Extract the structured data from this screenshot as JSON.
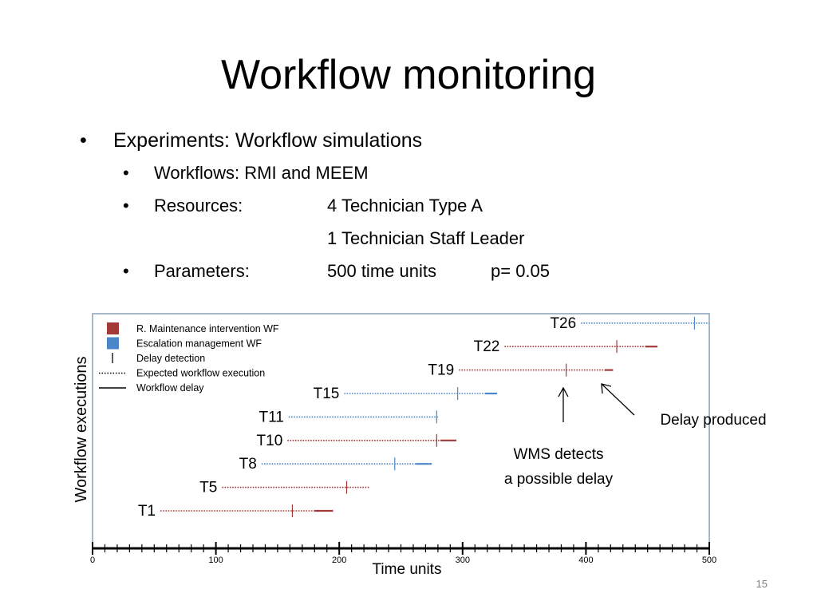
{
  "slide": {
    "title": "Workflow monitoring",
    "bullets": {
      "l1": {
        "bullet": "•",
        "text": "Experiments: Workflow simulations"
      },
      "workflows": {
        "bullet": "•",
        "label": "Workflows: RMI and MEEM"
      },
      "resources": {
        "bullet": "•",
        "label": "Resources:",
        "value": "4 Technician Type A"
      },
      "resources2": {
        "value": "1 Technician Staff Leader"
      },
      "parameters": {
        "bullet": "•",
        "label": "Parameters:",
        "value": "500 time units",
        "value2": "p= 0.05"
      }
    },
    "slide_number": "15"
  },
  "chart_data": {
    "type": "timeline",
    "title": "",
    "xlabel": "Time units",
    "ylabel": "Workflow executions",
    "xlim": [
      0,
      500
    ],
    "x_ticks": [
      0,
      100,
      200,
      300,
      400,
      500
    ],
    "legend": {
      "placement": "top-left",
      "entries": [
        {
          "key": "rmi",
          "label": "R. Maintenance intervention WF",
          "marker": "square",
          "color": "#a33a37"
        },
        {
          "key": "esc",
          "label": "Escalation management WF",
          "marker": "square",
          "color": "#4a86c8"
        },
        {
          "key": "det",
          "label": "Delay detection",
          "marker": "tick",
          "color": "#000000"
        },
        {
          "key": "exp",
          "label": "Expected workflow execution",
          "marker": "dotted",
          "color": "#000000"
        },
        {
          "key": "del",
          "label": "Workflow delay",
          "marker": "solid",
          "color": "#000000"
        }
      ]
    },
    "colors": {
      "rmi": "#a33a37",
      "esc": "#4a86c8"
    },
    "series": [
      {
        "name": "T1",
        "type": "rmi",
        "start": 55,
        "expected_end": 180,
        "detection": 162,
        "delay_end": 195
      },
      {
        "name": "T5",
        "type": "rmi",
        "start": 105,
        "expected_end": 225,
        "detection": 206
      },
      {
        "name": "T8",
        "type": "esc",
        "start": 137,
        "expected_end": 262,
        "detection": 245,
        "delay_end": 275
      },
      {
        "name": "T10",
        "type": "rmi",
        "start": 158,
        "expected_end": 282,
        "detection": 279,
        "delay_end": 295
      },
      {
        "name": "T11",
        "type": "esc",
        "start": 159,
        "expected_end": 280,
        "detection": 279
      },
      {
        "name": "T15",
        "type": "esc",
        "start": 204,
        "expected_end": 318,
        "detection": 296,
        "delay_end": 328
      },
      {
        "name": "T19",
        "type": "rmi",
        "start": 297,
        "expected_end": 415,
        "detection": 384,
        "delay_end": 422
      },
      {
        "name": "T22",
        "type": "rmi",
        "start": 334,
        "expected_end": 448,
        "detection": 425,
        "delay_end": 458
      },
      {
        "name": "T26",
        "type": "esc",
        "start": 396,
        "expected_end": 500,
        "detection": 488
      }
    ],
    "annotations": [
      {
        "key": "wms",
        "lines": [
          "WMS detects",
          "a possible delay"
        ]
      },
      {
        "key": "delay",
        "lines": [
          "Delay produced"
        ]
      }
    ]
  }
}
